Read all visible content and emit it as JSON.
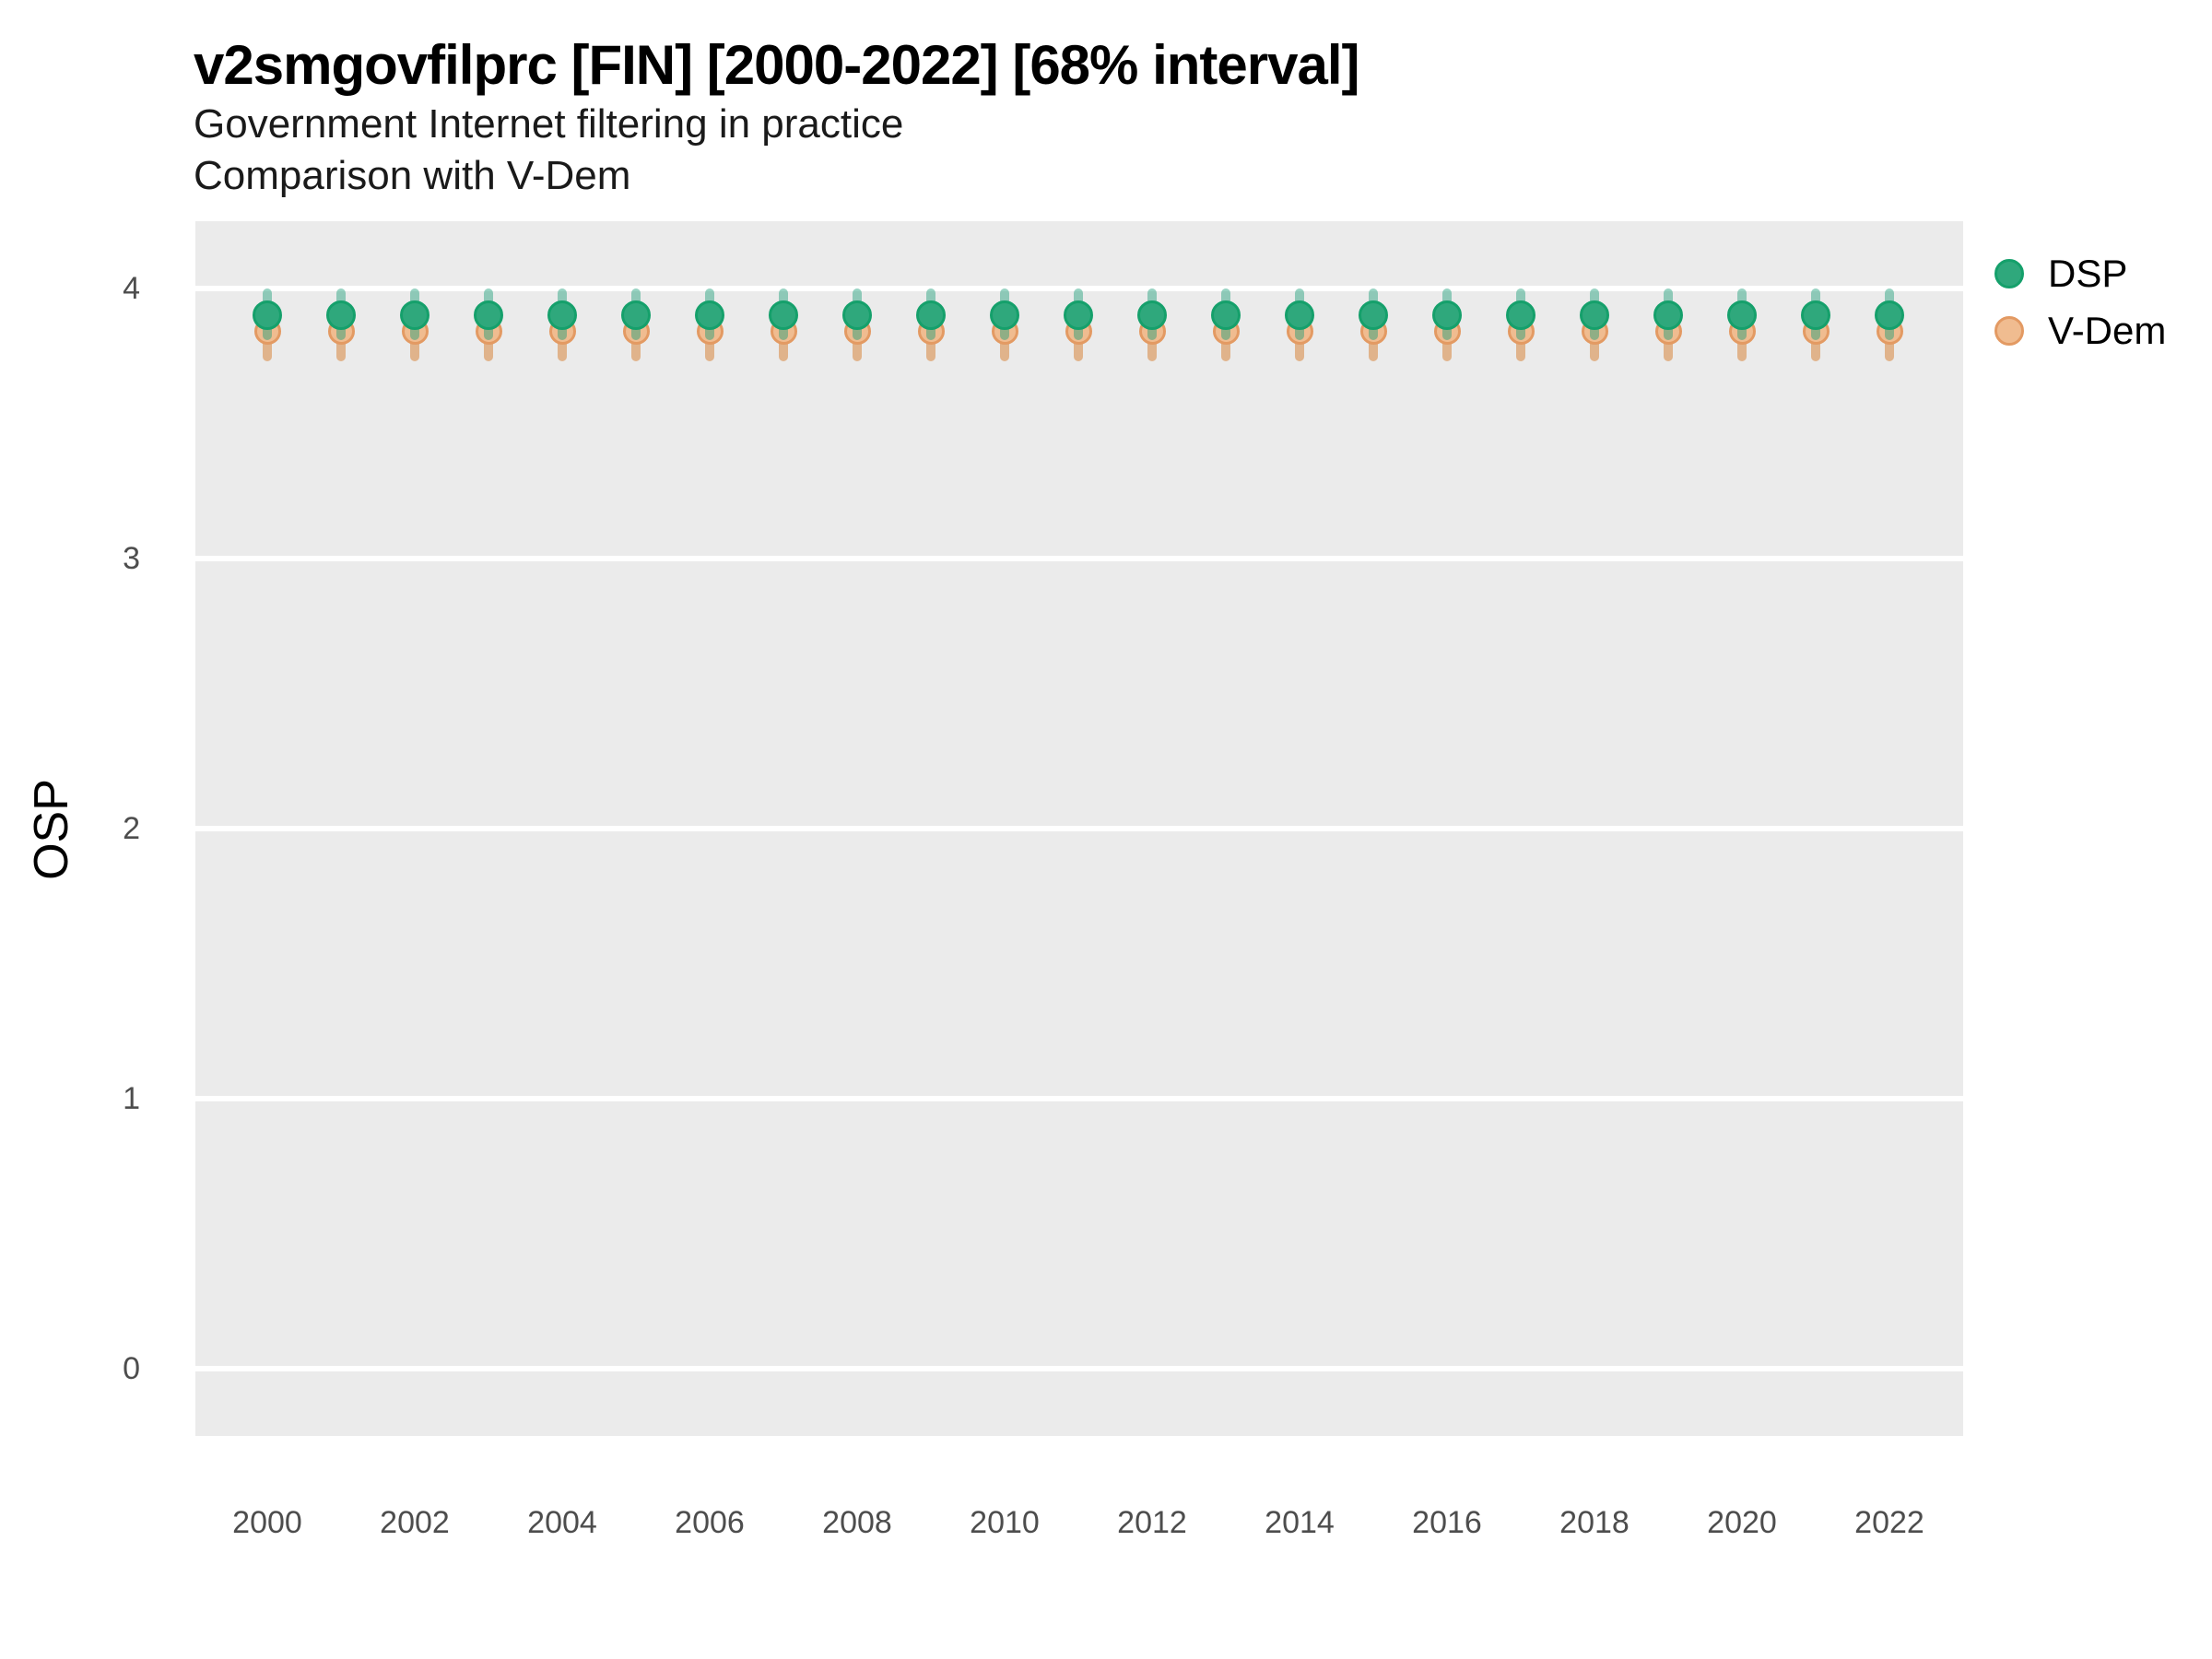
{
  "header": {
    "title": "v2smgovfilprc [FIN] [2000-2022] [68% interval]",
    "subtitle1": "Government Internet filtering in practice",
    "subtitle2": "Comparison with V-Dem"
  },
  "axes": {
    "y_title": "OSP",
    "y_ticks": [
      4,
      3,
      2,
      1,
      0
    ],
    "x_ticks": [
      2000,
      2002,
      2004,
      2006,
      2008,
      2010,
      2012,
      2014,
      2016,
      2018,
      2020,
      2022
    ]
  },
  "legend": [
    {
      "label": "DSP",
      "fill": "#2fa87c",
      "stroke": "#15a06b"
    },
    {
      "label": "V-Dem",
      "fill": "#f0bc90",
      "stroke": "#e39a63"
    }
  ],
  "colors": {
    "panel_bg": "#ebebeb",
    "gridline": "#ffffff",
    "dsp_fill": "#2fa87c",
    "dsp_stroke": "#15a06b",
    "dsp_interval": "rgba(27,158,119,0.45)",
    "vdem_fill": "#f0bc90",
    "vdem_stroke": "#e39a63",
    "vdem_interval": "rgba(214,124,44,0.5)",
    "tick_text": "#4d4d4d"
  },
  "chart_data": {
    "type": "scatter",
    "title": "v2smgovfilprc [FIN] [2000-2022] [68% interval]",
    "subtitle": "Government Internet filtering in practice — Comparison with V-Dem",
    "xlabel": "",
    "ylabel": "OSP",
    "xlim": [
      1999,
      2023
    ],
    "ylim": [
      -0.24,
      4.24
    ],
    "grid": "horizontal-major-only",
    "legend_position": "right-top",
    "interval_level": "68%",
    "x": [
      2000,
      2001,
      2002,
      2003,
      2004,
      2005,
      2006,
      2007,
      2008,
      2009,
      2010,
      2011,
      2012,
      2013,
      2014,
      2015,
      2016,
      2017,
      2018,
      2019,
      2020,
      2021,
      2022
    ],
    "series": [
      {
        "name": "DSP",
        "values": [
          3.9,
          3.9,
          3.9,
          3.9,
          3.9,
          3.9,
          3.9,
          3.9,
          3.9,
          3.9,
          3.9,
          3.9,
          3.9,
          3.9,
          3.9,
          3.9,
          3.9,
          3.9,
          3.9,
          3.9,
          3.9,
          3.9,
          3.9
        ],
        "lower": [
          3.81,
          3.81,
          3.81,
          3.81,
          3.81,
          3.81,
          3.81,
          3.81,
          3.81,
          3.81,
          3.81,
          3.81,
          3.81,
          3.81,
          3.81,
          3.81,
          3.81,
          3.81,
          3.81,
          3.81,
          3.81,
          3.81,
          3.81
        ],
        "upper": [
          4.0,
          4.0,
          4.0,
          4.0,
          4.0,
          4.0,
          4.0,
          4.0,
          4.0,
          4.0,
          4.0,
          4.0,
          4.0,
          4.0,
          4.0,
          4.0,
          4.0,
          4.0,
          4.0,
          4.0,
          4.0,
          4.0,
          4.0
        ]
      },
      {
        "name": "V-Dem",
        "values": [
          3.84,
          3.84,
          3.84,
          3.84,
          3.84,
          3.84,
          3.84,
          3.84,
          3.84,
          3.84,
          3.84,
          3.84,
          3.84,
          3.84,
          3.84,
          3.84,
          3.84,
          3.84,
          3.84,
          3.84,
          3.84,
          3.84,
          3.84
        ],
        "lower": [
          3.73,
          3.73,
          3.73,
          3.73,
          3.73,
          3.73,
          3.73,
          3.73,
          3.73,
          3.73,
          3.73,
          3.73,
          3.73,
          3.73,
          3.73,
          3.73,
          3.73,
          3.73,
          3.73,
          3.73,
          3.73,
          3.73,
          3.73
        ],
        "upper": [
          3.93,
          3.93,
          3.93,
          3.93,
          3.93,
          3.93,
          3.93,
          3.93,
          3.93,
          3.93,
          3.93,
          3.93,
          3.93,
          3.93,
          3.93,
          3.93,
          3.93,
          3.93,
          3.93,
          3.93,
          3.93,
          3.93,
          3.93
        ]
      }
    ]
  }
}
